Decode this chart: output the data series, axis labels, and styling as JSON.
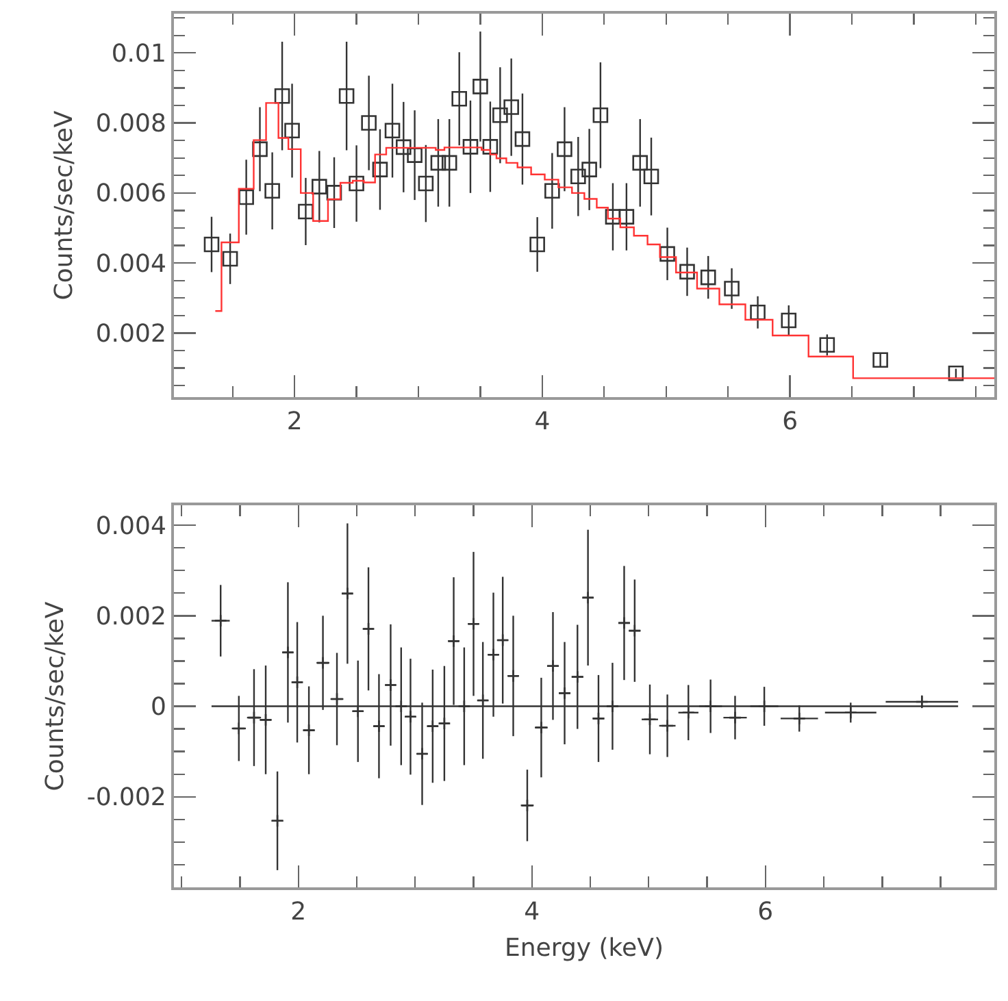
{
  "chart_data": [
    {
      "type": "scatter",
      "ylabel": "Counts/sec/keV",
      "xlim": [
        1.026,
        7.65
      ],
      "xticks": [
        2,
        4,
        6
      ],
      "ylim": [
        0.00017,
        0.01112
      ],
      "yticks": [
        0.002,
        0.004,
        0.006,
        0.008,
        0.01
      ],
      "series": [
        {
          "type": "scatter",
          "marker": "square",
          "color": "#333333",
          "x": [
            1.33,
            1.48,
            1.61,
            1.72,
            1.82,
            1.9,
            1.98,
            2.09,
            2.2,
            2.32,
            2.42,
            2.5,
            2.6,
            2.69,
            2.79,
            2.88,
            2.97,
            3.06,
            3.16,
            3.25,
            3.33,
            3.42,
            3.5,
            3.58,
            3.66,
            3.75,
            3.84,
            3.96,
            4.08,
            4.18,
            4.29,
            4.38,
            4.47,
            4.57,
            4.68,
            4.79,
            4.88,
            5.01,
            5.17,
            5.34,
            5.53,
            5.74,
            5.99,
            6.3,
            6.73,
            7.34
          ],
          "values": [
            0.00453,
            0.00412,
            0.00588,
            0.00725,
            0.00606,
            0.00877,
            0.00778,
            0.00547,
            0.00618,
            0.00601,
            0.00877,
            0.00627,
            0.008,
            0.00667,
            0.00778,
            0.00731,
            0.00708,
            0.00627,
            0.00686,
            0.00686,
            0.00869,
            0.00732,
            0.00904,
            0.00732,
            0.00822,
            0.00845,
            0.00754,
            0.00453,
            0.00606,
            0.00725,
            0.00647,
            0.00667,
            0.00822,
            0.00532,
            0.00532,
            0.00686,
            0.00647,
            0.00426,
            0.00375,
            0.00359,
            0.00327,
            0.00259,
            0.00236,
            0.00166,
            0.00123,
            0.00085
          ],
          "errors": [
            0.00079,
            0.00072,
            0.00107,
            0.0012,
            0.0011,
            0.00155,
            0.00134,
            0.00096,
            0.00102,
            0.00101,
            0.00155,
            0.00109,
            0.00135,
            0.00115,
            0.00134,
            0.00129,
            0.00128,
            0.0011,
            0.00125,
            0.00125,
            0.00133,
            0.00132,
            0.00157,
            0.00129,
            0.00137,
            0.00139,
            0.0013,
            0.00078,
            0.00108,
            0.0012,
            0.00113,
            0.00116,
            0.00151,
            0.00096,
            0.00096,
            0.00125,
            0.00111,
            0.00075,
            0.00069,
            0.00061,
            0.00058,
            0.00046,
            0.00043,
            0.0003,
            0.00021,
            0.00013
          ]
        },
        {
          "type": "step",
          "color": "#ff3333",
          "x": [
            1.36,
            1.41,
            1.55,
            1.67,
            1.77,
            1.87,
            1.95,
            2.05,
            2.15,
            2.27,
            2.37,
            2.47,
            2.56,
            2.65,
            2.74,
            2.88,
            3.14,
            3.21,
            3.28,
            3.51,
            3.58,
            3.63,
            3.71,
            3.8,
            3.91,
            4.02,
            4.13,
            4.24,
            4.34,
            4.44,
            4.53,
            4.63,
            4.74,
            4.85,
            4.95,
            5.08,
            5.25,
            5.43,
            5.64,
            5.86,
            6.15,
            6.51,
            7.04,
            7.65
          ],
          "values": [
            0.00263,
            0.00459,
            0.00612,
            0.00751,
            0.00857,
            0.00757,
            0.00725,
            0.006,
            0.0052,
            0.00582,
            0.00629,
            0.00635,
            0.0063,
            0.0071,
            0.00729,
            0.00729,
            0.00723,
            0.0073,
            0.0073,
            0.00723,
            0.0071,
            0.00699,
            0.00686,
            0.00673,
            0.00653,
            0.00638,
            0.00616,
            0.006,
            0.00583,
            0.00558,
            0.00527,
            0.00502,
            0.00478,
            0.00453,
            0.00417,
            0.00373,
            0.00327,
            0.00282,
            0.00238,
            0.00193,
            0.00133,
            0.00071,
            0.00071,
            0.00071
          ]
        }
      ]
    },
    {
      "type": "scatter",
      "xlabel": "Energy (keV)",
      "ylabel": "Counts/sec/keV",
      "xlim": [
        0.934,
        7.96
      ],
      "xticks": [
        2,
        4,
        6
      ],
      "ylim": [
        -0.004,
        0.00444
      ],
      "yticks": [
        -0.002,
        0,
        0.002,
        0.004
      ],
      "series": [
        {
          "type": "scatter",
          "marker": "cross",
          "color": "#333333",
          "x": [
            1.334,
            1.49,
            1.62,
            1.72,
            1.82,
            1.91,
            1.99,
            2.09,
            2.21,
            2.33,
            2.42,
            2.51,
            2.6,
            2.69,
            2.79,
            2.88,
            2.96,
            3.06,
            3.15,
            3.25,
            3.33,
            3.42,
            3.5,
            3.58,
            3.67,
            3.75,
            3.84,
            3.96,
            4.08,
            4.18,
            4.28,
            4.39,
            4.48,
            4.57,
            4.69,
            4.79,
            4.88,
            5.01,
            5.16,
            5.34,
            5.53,
            5.74,
            5.99,
            6.29,
            6.73,
            7.34
          ],
          "values": [
            0.00189,
            -0.00049,
            -0.00025,
            -0.0003,
            -0.00253,
            0.00119,
            0.00053,
            -0.00053,
            0.00096,
            0.00016,
            0.00249,
            -0.00011,
            0.00171,
            -0.00044,
            0.00047,
            0,
            -0.00023,
            -0.00105,
            -0.00044,
            -0.00038,
            0.00144,
            0,
            0.00182,
            0.00013,
            0.00114,
            0.00146,
            0.00067,
            -0.00219,
            -0.00047,
            0.00089,
            0.00029,
            0.00065,
            0.0024,
            -0.00027,
            0,
            0.00184,
            0.00167,
            -0.00029,
            -0.00043,
            -0.00014,
            0,
            -0.00025,
            0,
            -0.00027,
            -0.00014,
            0.0001
          ],
          "errors": [
            0.00079,
            0.00072,
            0.00107,
            0.0012,
            0.00109,
            0.00155,
            0.00133,
            0.00097,
            0.00104,
            0.00102,
            0.00155,
            0.00112,
            0.00136,
            0.00115,
            0.00134,
            0.0013,
            0.00128,
            0.00113,
            0.00125,
            0.00127,
            0.00141,
            0.0013,
            0.00159,
            0.00129,
            0.00137,
            0.0014,
            0.00133,
            0.00079,
            0.0011,
            0.00119,
            0.00113,
            0.00115,
            0.0015,
            0.00096,
            0.00096,
            0.00126,
            0.00113,
            0.00077,
            0.00069,
            0.00061,
            0.00059,
            0.00048,
            0.00043,
            0.00029,
            0.00022,
            0.00014
          ],
          "xerrors": [
            0.078,
            0.06,
            0.06,
            0.05,
            0.05,
            0.045,
            0.045,
            0.05,
            0.055,
            0.055,
            0.045,
            0.045,
            0.045,
            0.045,
            0.045,
            0.045,
            0.045,
            0.045,
            0.045,
            0.045,
            0.045,
            0.045,
            0.045,
            0.045,
            0.045,
            0.045,
            0.045,
            0.055,
            0.055,
            0.05,
            0.05,
            0.05,
            0.045,
            0.05,
            0.05,
            0.05,
            0.05,
            0.07,
            0.07,
            0.086,
            0.098,
            0.1,
            0.12,
            0.16,
            0.22,
            0.31
          ]
        },
        {
          "type": "line",
          "color": "#333333",
          "x": [
            1.256,
            7.65
          ],
          "values": [
            0,
            0
          ]
        }
      ]
    }
  ]
}
